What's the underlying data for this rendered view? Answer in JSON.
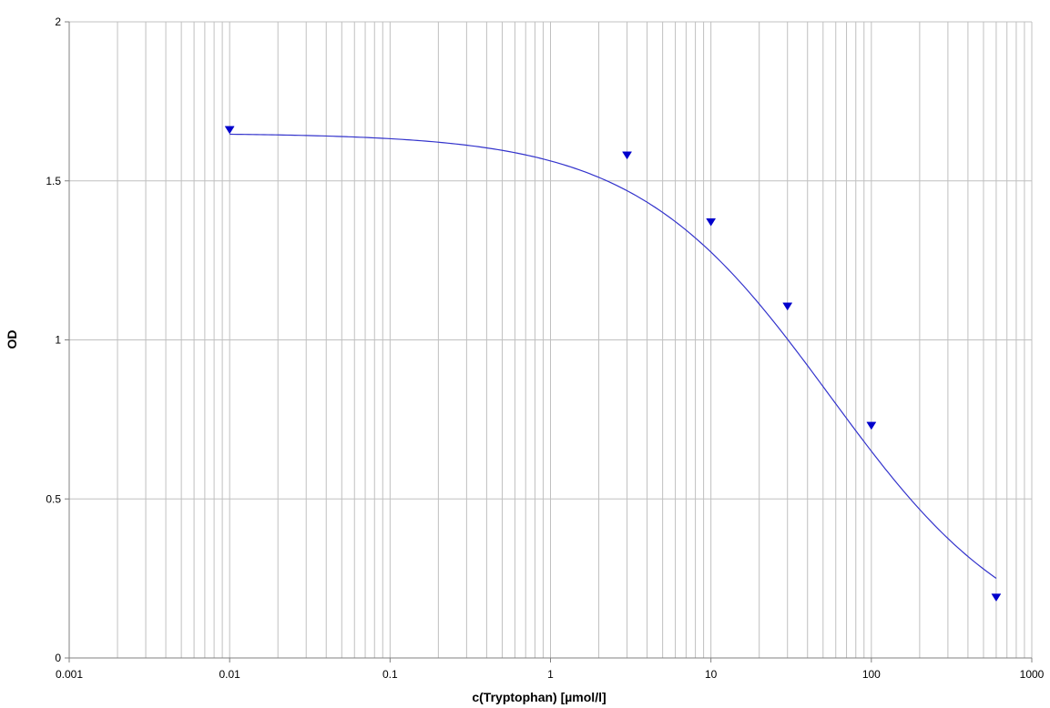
{
  "chart_data": {
    "type": "scatter",
    "title": "",
    "xlabel": "c(Tryptophan)  [µmol/l]",
    "ylabel": "OD",
    "x_scale": "log",
    "xlim": [
      0.001,
      1000
    ],
    "ylim": [
      0,
      2
    ],
    "x_ticks": [
      0.001,
      0.01,
      0.1,
      1,
      10,
      100,
      1000
    ],
    "x_tick_labels": [
      "0.001",
      "0.01",
      "0.1",
      "1",
      "10",
      "100",
      "1000"
    ],
    "y_ticks": [
      0,
      0.5,
      1,
      1.5,
      2
    ],
    "y_tick_labels": [
      "0",
      "0.5",
      "1",
      "1.5",
      "2"
    ],
    "grid": true,
    "legend": "none",
    "colors": {
      "series": "#0000cc",
      "fit": "#3333cc",
      "grid": "#c0c0c0",
      "axis": "#808080"
    },
    "series": [
      {
        "marker": "triangle-down",
        "x": [
          0.01,
          3,
          10,
          30,
          100,
          600
        ],
        "y": [
          1.66,
          1.58,
          1.37,
          1.105,
          0.73,
          0.19
        ]
      }
    ],
    "fit_curve": {
      "model": "4PL",
      "top": 1.65,
      "bottom": 0.0,
      "ec50": 55,
      "hill": 0.72,
      "x_range": [
        0.01,
        600
      ]
    }
  }
}
